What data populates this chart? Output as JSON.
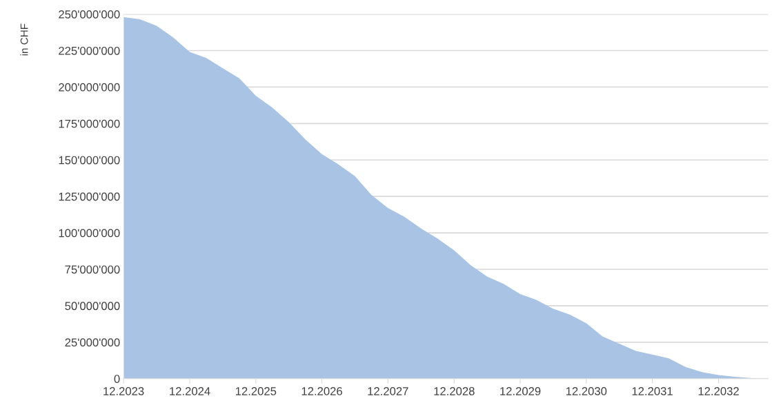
{
  "chart_data": {
    "type": "area",
    "ylabel": "in CHF",
    "x": [
      "2023-12",
      "2024-03",
      "2024-06",
      "2024-09",
      "2024-12",
      "2025-03",
      "2025-06",
      "2025-09",
      "2025-12",
      "2026-03",
      "2026-06",
      "2026-09",
      "2026-12",
      "2027-03",
      "2027-06",
      "2027-09",
      "2027-12",
      "2028-03",
      "2028-06",
      "2028-09",
      "2028-12",
      "2029-03",
      "2029-06",
      "2029-09",
      "2029-12",
      "2030-03",
      "2030-06",
      "2030-09",
      "2030-12",
      "2031-03",
      "2031-06",
      "2031-09",
      "2031-12",
      "2032-03",
      "2032-06",
      "2032-09",
      "2032-12",
      "2033-03",
      "2033-06",
      "2033-09"
    ],
    "series": [
      {
        "color": "#a9c3e4",
        "values": [
          248000000,
          246500000,
          242000000,
          234000000,
          224000000,
          220000000,
          213000000,
          206000000,
          194000000,
          186000000,
          176000000,
          164000000,
          154000000,
          147000000,
          139000000,
          126000000,
          117000000,
          111000000,
          103000000,
          96000000,
          88000000,
          78000000,
          70000000,
          65000000,
          58000000,
          54000000,
          48000000,
          44000000,
          38000000,
          29000000,
          24000000,
          19000000,
          16500000,
          14000000,
          8000000,
          4500000,
          2500000,
          1300000,
          400000,
          0
        ]
      }
    ],
    "xlim": [
      "2023-12",
      "2033-09"
    ],
    "xticks": [
      {
        "value": "2023-12",
        "label": "12.2023"
      },
      {
        "value": "2024-12",
        "label": "12.2024"
      },
      {
        "value": "2025-12",
        "label": "12.2025"
      },
      {
        "value": "2026-12",
        "label": "12.2026"
      },
      {
        "value": "2027-12",
        "label": "12.2027"
      },
      {
        "value": "2028-12",
        "label": "12.2028"
      },
      {
        "value": "2029-12",
        "label": "12.2029"
      },
      {
        "value": "2030-12",
        "label": "12.2030"
      },
      {
        "value": "2031-12",
        "label": "12.2031"
      },
      {
        "value": "2032-12",
        "label": "12.2032"
      }
    ],
    "ylim": [
      0,
      250000000
    ],
    "yticks": [
      0,
      {
        "value": 25000000,
        "label": "25'000'000"
      },
      {
        "value": 50000000,
        "label": "50'000'000"
      },
      {
        "value": 75000000,
        "label": "75'000'000"
      },
      {
        "value": 100000000,
        "label": "100'000'000"
      },
      {
        "value": 125000000,
        "label": "125'000'000"
      },
      {
        "value": 150000000,
        "label": "150'000'000"
      },
      {
        "value": 175000000,
        "label": "175'000'000"
      },
      {
        "value": 200000000,
        "label": "200'000'000"
      },
      {
        "value": 225000000,
        "label": "225'000'000"
      },
      {
        "value": 250000000,
        "label": "250'000'000"
      }
    ],
    "grid": "y"
  }
}
